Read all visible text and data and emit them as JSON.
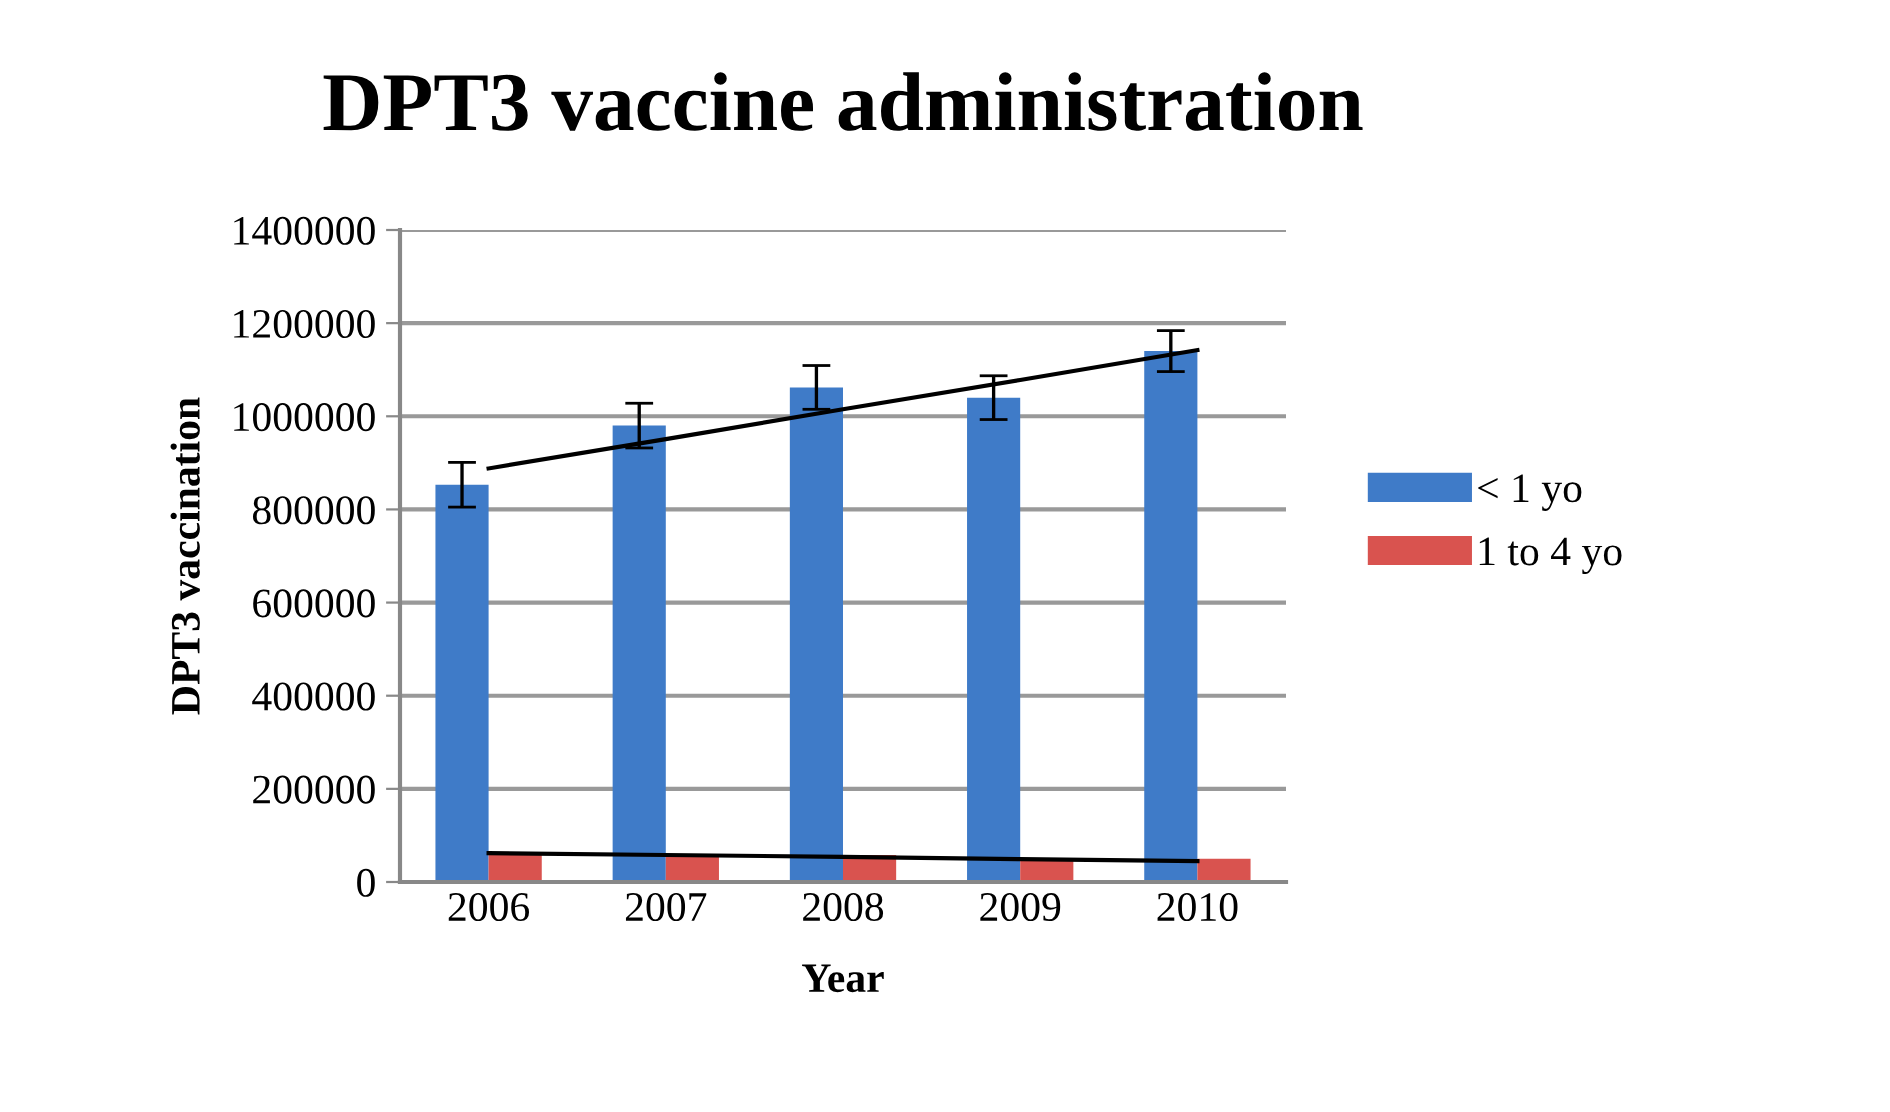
{
  "chart_data": {
    "type": "bar",
    "title": "DPT3 vaccine administration",
    "xlabel": "Year",
    "ylabel": "DPT3 vaccination",
    "categories": [
      "2006",
      "2007",
      "2008",
      "2009",
      "2010"
    ],
    "series": [
      {
        "name": "< 1 yo",
        "color": "#3f7bc8",
        "values": [
          853000,
          980000,
          1062000,
          1040000,
          1140000
        ],
        "errors": [
          48000,
          48000,
          47000,
          47000,
          44000
        ]
      },
      {
        "name": "1 to 4 yo",
        "color": "#d9534f",
        "values": [
          60000,
          59000,
          58000,
          49000,
          50000
        ]
      },
      {
        "type": "line",
        "color": "#000000",
        "values": [
          888000,
          951000,
          1015000,
          1078000,
          1142000
        ]
      },
      {
        "type": "line",
        "color": "#000000",
        "values": [
          62000,
          58000,
          54000,
          49000,
          45000
        ]
      }
    ],
    "ylim": [
      0,
      1400000
    ],
    "yticks": [
      0,
      200000,
      400000,
      600000,
      800000,
      1000000,
      1200000,
      1400000
    ],
    "grid": "y",
    "legend": "right"
  }
}
